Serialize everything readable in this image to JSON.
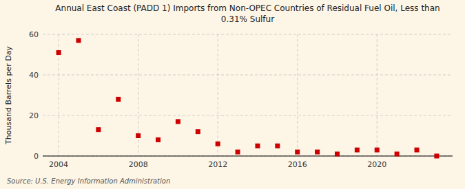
{
  "chart_data": {
    "type": "scatter",
    "title": "Annual East Coast (PADD 1) Imports from Non-OPEC Countries of Residual Fuel Oil, Less than\n0.31% Sulfur",
    "ylabel": "Thousand Barrels per Day",
    "source": "Source: U.S. Energy Information Administration",
    "color": "#cc0000",
    "marker": "square",
    "x": [
      2004,
      2005,
      2006,
      2007,
      2008,
      2009,
      2010,
      2011,
      2012,
      2013,
      2014,
      2015,
      2016,
      2017,
      2018,
      2019,
      2020,
      2021,
      2022,
      2023
    ],
    "values": [
      51,
      57,
      13,
      28,
      10,
      8,
      17,
      12,
      6,
      2,
      5,
      5,
      2,
      2,
      1,
      3,
      3,
      1,
      3,
      0
    ],
    "xlim": [
      2003.2,
      2023.8
    ],
    "ylim": [
      0,
      60
    ],
    "xticks": [
      2004,
      2008,
      2012,
      2016,
      2020
    ],
    "yticks": [
      0,
      20,
      40,
      60
    ],
    "grid": true
  }
}
